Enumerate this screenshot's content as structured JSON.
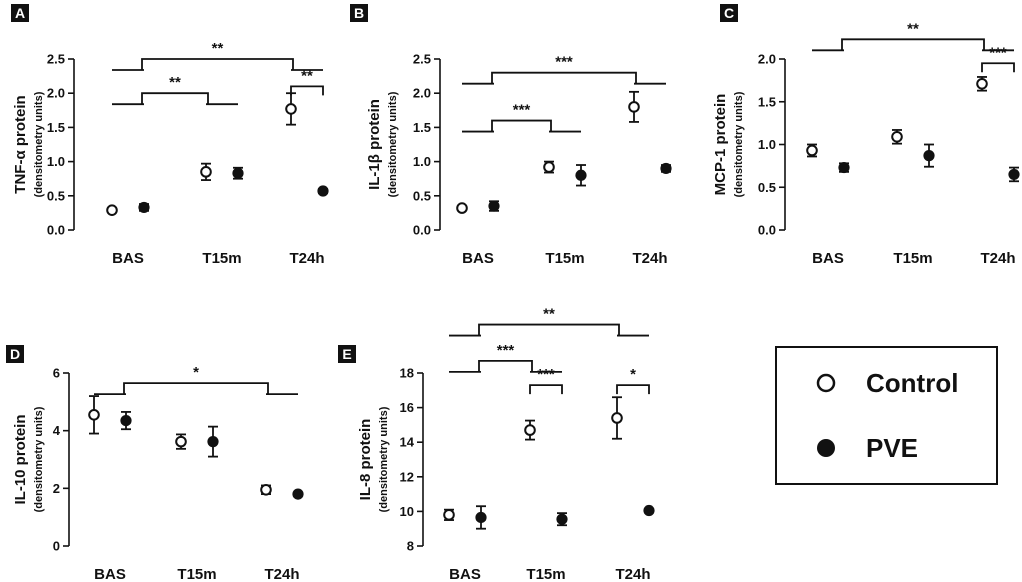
{
  "legend": {
    "control": "Control",
    "pve": "PVE"
  },
  "colors": {
    "ink": "#111111",
    "panel_label_bg": "#111111",
    "background": "#ffffff"
  },
  "chart_data": [
    {
      "panel": "A",
      "type": "scatter",
      "ylabel": "TNF-α protein",
      "ysublabel": "(densitometry units)",
      "categories": [
        "BAS",
        "T15m",
        "T24h"
      ],
      "ylim": [
        0,
        2.5
      ],
      "yticks": [
        "0.0",
        "0.5",
        "1.0",
        "1.5",
        "2.0",
        "2.5"
      ],
      "series": [
        {
          "name": "Control",
          "values": [
            0.29,
            0.85,
            1.77
          ],
          "errors": [
            0.03,
            0.12,
            0.23
          ]
        },
        {
          "name": "PVE",
          "values": [
            0.33,
            0.83,
            0.57
          ],
          "errors": [
            0.05,
            0.08,
            0.03
          ]
        }
      ],
      "annotations": [
        {
          "label": "**",
          "type": "group",
          "from": 0,
          "to": 2,
          "level": 2.5
        },
        {
          "label": "**",
          "type": "group",
          "from": 0,
          "to": 1,
          "level": 2.0
        },
        {
          "label": "**",
          "type": "pair",
          "cat": 2,
          "level": 2.1
        }
      ]
    },
    {
      "panel": "B",
      "type": "scatter",
      "ylabel": "IL-1β protein",
      "ysublabel": "(densitometry units)",
      "categories": [
        "BAS",
        "T15m",
        "T24h"
      ],
      "ylim": [
        0,
        2.5
      ],
      "yticks": [
        "0.0",
        "0.5",
        "1.0",
        "1.5",
        "2.0",
        "2.5"
      ],
      "series": [
        {
          "name": "Control",
          "values": [
            0.32,
            0.92,
            1.8
          ],
          "errors": [
            0.03,
            0.08,
            0.22
          ]
        },
        {
          "name": "PVE",
          "values": [
            0.35,
            0.8,
            0.9
          ],
          "errors": [
            0.07,
            0.15,
            0.05
          ]
        }
      ],
      "annotations": [
        {
          "label": "***",
          "type": "group",
          "from": 0,
          "to": 2,
          "level": 2.3
        },
        {
          "label": "***",
          "type": "group",
          "from": 0,
          "to": 1,
          "level": 1.6
        }
      ]
    },
    {
      "panel": "C",
      "type": "scatter",
      "ylabel": "MCP-1 protein",
      "ysublabel": "(densitometry units)",
      "categories": [
        "BAS",
        "T15m",
        "T24h"
      ],
      "ylim": [
        0,
        2.0
      ],
      "yticks": [
        "0.0",
        "0.5",
        "1.0",
        "1.5",
        "2.0"
      ],
      "series": [
        {
          "name": "Control",
          "values": [
            0.93,
            1.09,
            1.71
          ],
          "errors": [
            0.07,
            0.08,
            0.08
          ]
        },
        {
          "name": "PVE",
          "values": [
            0.73,
            0.87,
            0.65
          ],
          "errors": [
            0.05,
            0.13,
            0.08
          ]
        }
      ],
      "annotations": [
        {
          "label": "**",
          "type": "group",
          "from": 0,
          "to": 2,
          "level": 2.23
        },
        {
          "label": "***",
          "type": "pair",
          "cat": 2,
          "level": 1.95
        }
      ]
    },
    {
      "panel": "D",
      "type": "scatter",
      "ylabel": "IL-10 protein",
      "ysublabel": "(densitometry units)",
      "categories": [
        "BAS",
        "T15m",
        "T24h"
      ],
      "ylim": [
        0,
        6
      ],
      "yticks": [
        "0",
        "2",
        "4",
        "6"
      ],
      "series": [
        {
          "name": "Control",
          "values": [
            4.55,
            3.62,
            1.95
          ],
          "errors": [
            0.65,
            0.25,
            0.15
          ]
        },
        {
          "name": "PVE",
          "values": [
            4.35,
            3.62,
            1.8
          ],
          "errors": [
            0.3,
            0.52,
            0.05
          ]
        }
      ],
      "annotations": [
        {
          "label": "*",
          "type": "group",
          "from": 0,
          "to": 2,
          "level": 5.65
        }
      ]
    },
    {
      "panel": "E",
      "type": "scatter",
      "ylabel": "IL-8 protein",
      "ysublabel": "(densitometry units)",
      "categories": [
        "BAS",
        "T15m",
        "T24h"
      ],
      "ylim": [
        8,
        18
      ],
      "yticks": [
        "8",
        "10",
        "12",
        "14",
        "16",
        "18"
      ],
      "series": [
        {
          "name": "Control",
          "values": [
            9.8,
            14.7,
            15.4
          ],
          "errors": [
            0.3,
            0.55,
            1.2
          ]
        },
        {
          "name": "PVE",
          "values": [
            9.65,
            9.55,
            10.05
          ],
          "errors": [
            0.65,
            0.35,
            0.1
          ]
        }
      ],
      "annotations": [
        {
          "label": "**",
          "type": "group",
          "from": 0,
          "to": 2,
          "level": 20.8
        },
        {
          "label": "***",
          "type": "group",
          "from": 0,
          "to": 1,
          "level": 18.7
        },
        {
          "label": "***",
          "type": "pair",
          "cat": 1,
          "level": 17.3
        },
        {
          "label": "*",
          "type": "pair",
          "cat": 2,
          "level": 17.3
        }
      ]
    }
  ]
}
